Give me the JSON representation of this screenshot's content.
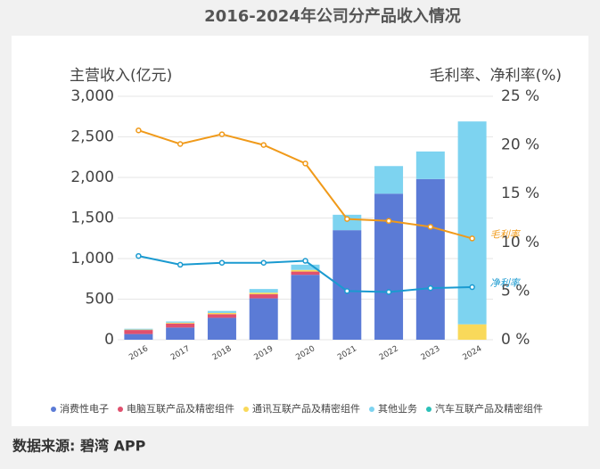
{
  "chart_data": {
    "type": "bar-line",
    "title": "2016-2024年公司分产品收入情况",
    "y_label": "主营收入(亿元)",
    "y2_label": "毛利率、净利率(%)",
    "source": "数据来源: 碧湾 APP",
    "categories": [
      "2016",
      "2017",
      "2018",
      "2019",
      "2020",
      "2021",
      "2022",
      "2023",
      "2024"
    ],
    "ylim": [
      0,
      3000
    ],
    "yticks": [
      0,
      500,
      {
        "value": 1000,
        "label": "1,000"
      },
      {
        "value": 1500,
        "label": "1,500"
      },
      {
        "value": 2000,
        "label": "2,000"
      },
      {
        "value": 2500,
        "label": "2,500"
      },
      {
        "value": 3000,
        "label": "3,000"
      }
    ],
    "y2lim": [
      0,
      25
    ],
    "y2ticks": [
      {
        "value": 0,
        "label": "0 %"
      },
      {
        "value": 5,
        "label": "5 %"
      },
      {
        "value": 10,
        "label": "10 %"
      },
      {
        "value": 15,
        "label": "15 %"
      },
      {
        "value": 20,
        "label": "20 %"
      },
      {
        "value": 25,
        "label": "25 %"
      }
    ],
    "grid": true,
    "series": [
      {
        "name": "消费性电子",
        "color": "#5b7bd6",
        "values": [
          70,
          150,
          270,
          510,
          800,
          1350,
          1800,
          1980,
          0
        ]
      },
      {
        "name": "电脑互联产品及精密组件",
        "color": "#e0506e",
        "values": [
          50,
          50,
          45,
          50,
          40,
          0,
          0,
          0,
          0
        ]
      },
      {
        "name": "通讯互联产品及精密组件",
        "color": "#f9d95a",
        "values": [
          5,
          10,
          15,
          20,
          20,
          0,
          0,
          0,
          190
        ]
      },
      {
        "name": "其他业务",
        "color": "#7dd3f0",
        "values": [
          10,
          15,
          25,
          45,
          65,
          190,
          340,
          340,
          2500
        ]
      },
      {
        "name": "汽车互联产品及精密组件",
        "color": "#2bc0b8",
        "values": [
          0,
          0,
          0,
          0,
          0,
          0,
          0,
          0,
          0
        ]
      },
      {
        "name": "毛利率",
        "type": "line",
        "axis": "y2",
        "color": "#f09a1a",
        "values": [
          21.5,
          20.1,
          21.1,
          20.0,
          18.1,
          12.4,
          12.2,
          11.6,
          10.4
        ]
      },
      {
        "name": "净利率",
        "type": "line",
        "axis": "y2",
        "color": "#1a9ad0",
        "values": [
          8.6,
          7.7,
          7.9,
          7.9,
          8.1,
          5.0,
          4.9,
          5.3,
          5.4
        ]
      }
    ]
  }
}
